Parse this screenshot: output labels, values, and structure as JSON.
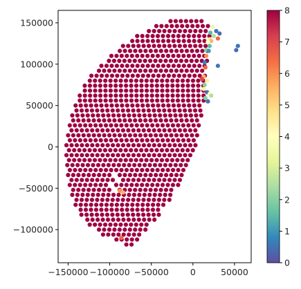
{
  "chart_data": {
    "type": "scatter",
    "title": "",
    "xlabel": "",
    "ylabel": "",
    "xlim": [
      -162000,
      70000
    ],
    "ylim": [
      -140000,
      165000
    ],
    "x_ticks": [
      {
        "value": -150000,
        "label": "−150000"
      },
      {
        "value": -100000,
        "label": "−100000"
      },
      {
        "value": -50000,
        "label": "−50000"
      },
      {
        "value": 0,
        "label": "0"
      },
      {
        "value": 50000,
        "label": "50000"
      }
    ],
    "y_ticks": [
      {
        "value": -100000,
        "label": "−100000"
      },
      {
        "value": -50000,
        "label": "−50000"
      },
      {
        "value": 0,
        "label": "0"
      },
      {
        "value": 50000,
        "label": "50000"
      },
      {
        "value": 100000,
        "label": "100000"
      },
      {
        "value": 150000,
        "label": "150000"
      }
    ],
    "colorbar": {
      "colormap": "Spectral_r",
      "vmin": 0,
      "vmax": 8,
      "ticks": [
        {
          "value": 0,
          "label": "0"
        },
        {
          "value": 1,
          "label": "1"
        },
        {
          "value": 2,
          "label": "2"
        },
        {
          "value": 3,
          "label": "3"
        },
        {
          "value": 4,
          "label": "4"
        },
        {
          "value": 5,
          "label": "5"
        },
        {
          "value": 6,
          "label": "6"
        },
        {
          "value": 7,
          "label": "7"
        },
        {
          "value": 8,
          "label": "8"
        }
      ]
    },
    "main_cloud": {
      "value": 8,
      "color": "#9e0142",
      "grid_spacing": 6200,
      "rows": [
        {
          "y": -118000,
          "x_start": -80000,
          "x_end": -70000
        },
        {
          "y": -112000,
          "x_start": -95000,
          "x_end": -65000
        },
        {
          "y": -106000,
          "x_start": -108000,
          "x_end": -60000
        },
        {
          "y": -100000,
          "x_start": -116000,
          "x_end": -55000
        },
        {
          "y": -94000,
          "x_start": -124000,
          "x_end": -50000
        },
        {
          "y": -88000,
          "x_start": -130000,
          "x_end": -45000
        },
        {
          "y": -82000,
          "x_start": -134000,
          "x_end": -40000
        },
        {
          "y": -76000,
          "x_start": -138000,
          "x_end": -36000
        },
        {
          "y": -70000,
          "x_start": -141000,
          "x_end": -32000
        },
        {
          "y": -64000,
          "x_start": -143000,
          "x_end": -28000
        },
        {
          "y": -58000,
          "x_start": -145000,
          "x_end": -24000
        },
        {
          "y": -52000,
          "x_start": -147000,
          "x_end": -20000
        },
        {
          "y": -46000,
          "x_start": -148000,
          "x_end": -16000
        },
        {
          "y": -40000,
          "x_start": -149000,
          "x_end": -12000
        },
        {
          "y": -34000,
          "x_start": -150000,
          "x_end": -9000
        },
        {
          "y": -28000,
          "x_start": -151000,
          "x_end": -6000
        },
        {
          "y": -22000,
          "x_start": -151000,
          "x_end": -3000
        },
        {
          "y": -16000,
          "x_start": -152000,
          "x_end": -1000
        },
        {
          "y": -10000,
          "x_start": -152000,
          "x_end": 1000
        },
        {
          "y": -4000,
          "x_start": -152000,
          "x_end": 3000
        },
        {
          "y": 2000,
          "x_start": -152000,
          "x_end": 5000
        },
        {
          "y": 8000,
          "x_start": -151000,
          "x_end": 6000
        },
        {
          "y": 14000,
          "x_start": -150000,
          "x_end": 8000
        },
        {
          "y": 20000,
          "x_start": -149000,
          "x_end": 9000
        },
        {
          "y": 26000,
          "x_start": -148000,
          "x_end": 10000
        },
        {
          "y": 32000,
          "x_start": -147000,
          "x_end": 11000
        },
        {
          "y": 38000,
          "x_start": -145000,
          "x_end": 12000
        },
        {
          "y": 44000,
          "x_start": -143000,
          "x_end": 13000
        },
        {
          "y": 50000,
          "x_start": -141000,
          "x_end": 13000
        },
        {
          "y": 56000,
          "x_start": -139000,
          "x_end": 14000
        },
        {
          "y": 62000,
          "x_start": -136000,
          "x_end": 14000
        },
        {
          "y": 68000,
          "x_start": -133000,
          "x_end": 15000
        },
        {
          "y": 74000,
          "x_start": -130000,
          "x_end": 15000
        },
        {
          "y": 80000,
          "x_start": -127000,
          "x_end": 16000
        },
        {
          "y": 86000,
          "x_start": -122000,
          "x_end": 16000
        },
        {
          "y": 92000,
          "x_start": -116000,
          "x_end": 17000
        },
        {
          "y": 98000,
          "x_start": -110000,
          "x_end": 17000
        },
        {
          "y": 104000,
          "x_start": -104000,
          "x_end": 18000
        },
        {
          "y": 110000,
          "x_start": -98000,
          "x_end": 18000
        },
        {
          "y": 116000,
          "x_start": -91000,
          "x_end": 19000
        },
        {
          "y": 122000,
          "x_start": -84000,
          "x_end": 19000
        },
        {
          "y": 128000,
          "x_start": -76000,
          "x_end": 20000
        },
        {
          "y": 134000,
          "x_start": -67000,
          "x_end": 20000
        },
        {
          "y": 140000,
          "x_start": -56000,
          "x_end": 20000
        },
        {
          "y": 146000,
          "x_start": -44000,
          "x_end": 19000
        },
        {
          "y": 152000,
          "x_start": -30000,
          "x_end": 16000
        }
      ],
      "gaps": [
        {
          "x": -95000,
          "y": -35000
        },
        {
          "x": -92000,
          "y": -38000
        },
        {
          "x": -98000,
          "y": -48000
        },
        {
          "x": -95000,
          "y": -50000
        },
        {
          "x": -92000,
          "y": -50000
        }
      ]
    },
    "scatter_points": [
      {
        "x": 24000,
        "y": 145000,
        "value": 3.5
      },
      {
        "x": 28000,
        "y": 140000,
        "value": 0.5
      },
      {
        "x": 21000,
        "y": 138000,
        "value": 1.5
      },
      {
        "x": 32000,
        "y": 137000,
        "value": 0.4
      },
      {
        "x": 25000,
        "y": 134000,
        "value": 2.5
      },
      {
        "x": 30000,
        "y": 131000,
        "value": 6.5
      },
      {
        "x": 20000,
        "y": 130000,
        "value": 4.5
      },
      {
        "x": 22000,
        "y": 128000,
        "value": 5.5
      },
      {
        "x": 18000,
        "y": 127000,
        "value": 4.0
      },
      {
        "x": 20000,
        "y": 122000,
        "value": 1.5
      },
      {
        "x": 16000,
        "y": 117000,
        "value": 2.0
      },
      {
        "x": 19000,
        "y": 116000,
        "value": 1.0
      },
      {
        "x": 16000,
        "y": 110000,
        "value": 6.0
      },
      {
        "x": 54000,
        "y": 122000,
        "value": 0.5
      },
      {
        "x": 52000,
        "y": 117000,
        "value": 0.4
      },
      {
        "x": 30000,
        "y": 98000,
        "value": 0.5
      },
      {
        "x": 14000,
        "y": 102000,
        "value": 0.8
      },
      {
        "x": 15000,
        "y": 96000,
        "value": 6.5
      },
      {
        "x": 13000,
        "y": 85000,
        "value": 5.5
      },
      {
        "x": 17000,
        "y": 80000,
        "value": 4.5
      },
      {
        "x": 11000,
        "y": 82000,
        "value": 7.0
      },
      {
        "x": 14000,
        "y": 75000,
        "value": 2.0
      },
      {
        "x": 13000,
        "y": 70000,
        "value": 3.5
      },
      {
        "x": 17000,
        "y": 66000,
        "value": 0.4
      },
      {
        "x": 20000,
        "y": 64000,
        "value": 4.0
      },
      {
        "x": 22000,
        "y": 62000,
        "value": 2.5
      },
      {
        "x": 15000,
        "y": 59000,
        "value": 2.0
      },
      {
        "x": 18000,
        "y": 55000,
        "value": 0.5
      },
      {
        "x": -88000,
        "y": -53000,
        "value": 6.0
      },
      {
        "x": -84000,
        "y": -55000,
        "value": 5.5
      },
      {
        "x": -86000,
        "y": -110000,
        "value": 6.5
      }
    ]
  }
}
